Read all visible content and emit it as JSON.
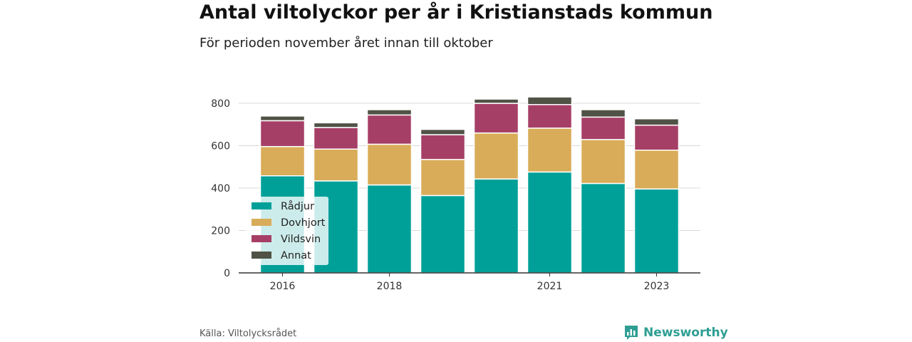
{
  "title": "Antal viltolyckor per år i Kristianstads kommun",
  "subtitle": "För perioden november året innan till oktober",
  "source": "Källa: Viltolycksrådet",
  "brand": "Newsworthy",
  "colors": {
    "Rådjur": "#00a099",
    "Dovhjort": "#d9ac59",
    "Vildsvin": "#a63f66",
    "Annat": "#4f5245",
    "brand": "#2e9e93"
  },
  "chart_data": {
    "type": "bar",
    "stacked": true,
    "categories": [
      "2016",
      "2017",
      "2018",
      "2019",
      "2020",
      "2021",
      "2022",
      "2023"
    ],
    "x_tick_labels": [
      "2016",
      "",
      "2018",
      "",
      "",
      "2021",
      "",
      "2023"
    ],
    "series": [
      {
        "name": "Rådjur",
        "values": [
          458,
          434,
          415,
          365,
          443,
          476,
          422,
          396
        ]
      },
      {
        "name": "Dovhjort",
        "values": [
          138,
          150,
          192,
          170,
          217,
          207,
          207,
          183
        ]
      },
      {
        "name": "Vildsvin",
        "values": [
          122,
          102,
          138,
          117,
          140,
          111,
          106,
          118
        ]
      },
      {
        "name": "Annat",
        "values": [
          22,
          22,
          25,
          25,
          20,
          36,
          35,
          30
        ]
      }
    ],
    "ylim": [
      0,
      850
    ],
    "y_ticks": [
      0,
      200,
      400,
      600,
      800
    ],
    "grid": true,
    "legend_position": "bottom-left inside"
  }
}
